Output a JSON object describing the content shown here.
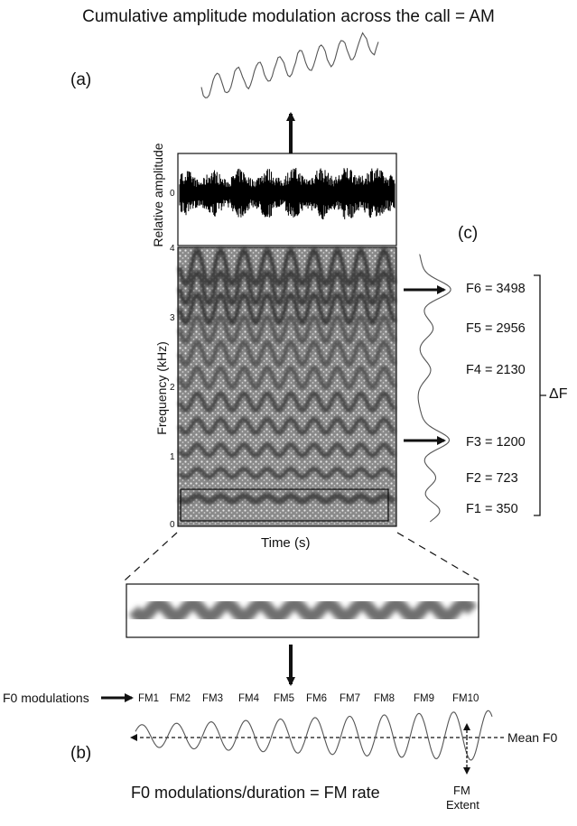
{
  "title": "Cumulative amplitude modulation across the call = AM",
  "panel_labels": {
    "a": "(a)",
    "b": "(b)",
    "c": "(c)"
  },
  "waveform": {
    "ylabel": "Relative amplitude",
    "zero_tick": "0"
  },
  "spectrogram": {
    "ylabel": "Frequency (kHz)",
    "xlabel": "Time (s)",
    "yticks": [
      "0",
      "1",
      "2",
      "3",
      "4"
    ]
  },
  "formants": [
    {
      "label": "F6 = 3498",
      "khz": 3.498
    },
    {
      "label": "F5 = 2956",
      "khz": 2.956
    },
    {
      "label": "F4 = 2130",
      "khz": 2.13
    },
    {
      "label": "F3 = 1200",
      "khz": 1.2
    },
    {
      "label": "F2 = 723",
      "khz": 0.723
    },
    {
      "label": "F1 = 350",
      "khz": 0.35
    }
  ],
  "delta_f": "ΔF",
  "f0_modulations": {
    "label": "F0 modulations",
    "items": [
      "FM1",
      "FM2",
      "FM3",
      "FM4",
      "FM5",
      "FM6",
      "FM7",
      "FM8",
      "FM9",
      "FM10"
    ],
    "mean_label": "Mean F0",
    "extent_label_1": "FM",
    "extent_label_2": "Extent"
  },
  "fm_rate_formula": "F0 modulations/duration = FM rate",
  "colors": {
    "ink": "#111111",
    "trace": "#555555",
    "spectrogram_bg": "#3a3a3a"
  }
}
